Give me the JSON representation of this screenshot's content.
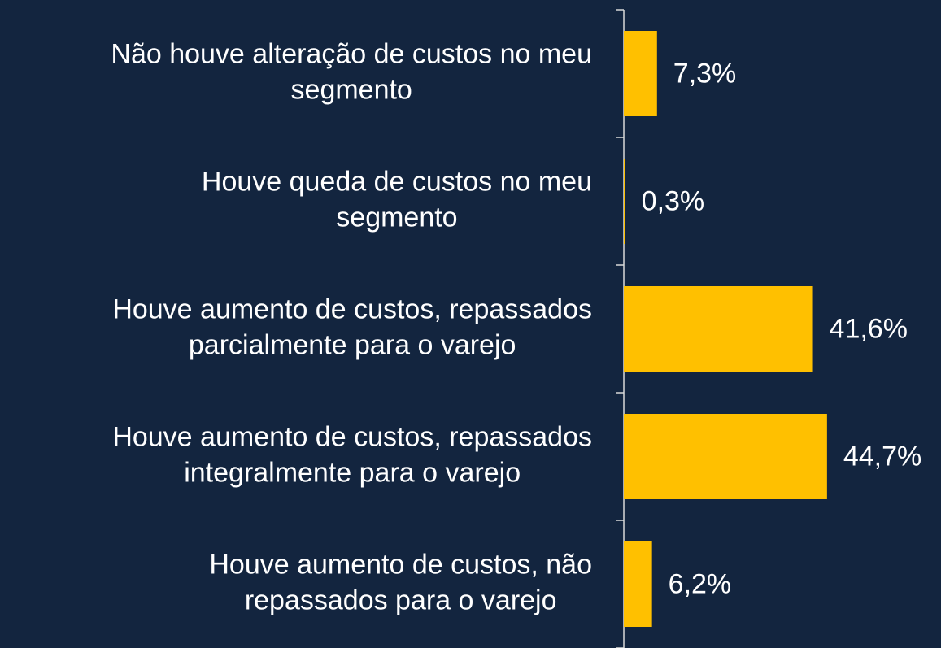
{
  "chart_data": {
    "type": "barh",
    "categories": [
      [
        "Não houve alteração de custos no meu",
        "segmento"
      ],
      [
        "Houve queda de custos no meu",
        "segmento"
      ],
      [
        "Houve aumento de custos, repassados",
        "parcialmente para o varejo"
      ],
      [
        "Houve aumento de custos, repassados",
        "integralmente para o varejo"
      ],
      [
        "Houve aumento de custos, não",
        "repassados para o varejo"
      ]
    ],
    "values": [
      7.3,
      0.3,
      41.6,
      44.7,
      6.2
    ],
    "value_labels": [
      "7,3%",
      "0,3%",
      "41,6%",
      "44,7%",
      "6,2%"
    ],
    "color": "#ffc000"
  }
}
